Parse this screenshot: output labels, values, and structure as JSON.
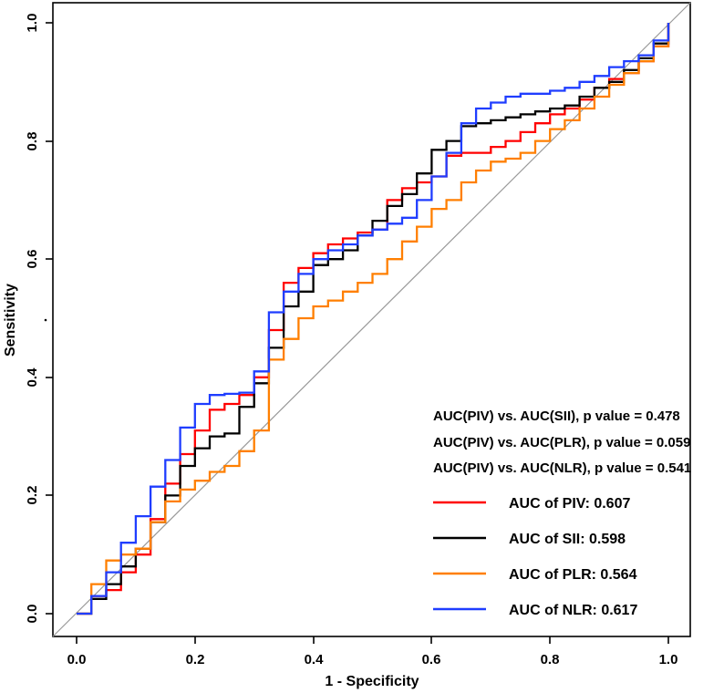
{
  "figure": {
    "xlabel": "1 - Specificity",
    "ylabel": "Sensitivity",
    "x_ticks": [
      "0.0",
      "0.2",
      "0.4",
      "0.6",
      "0.8",
      "1.0"
    ],
    "y_ticks": [
      "0.0",
      "0.2",
      "0.4",
      "0.6",
      "0.8",
      "1.0"
    ]
  },
  "annotations": {
    "p_values": [
      "AUC(PIV) vs. AUC(SII), p value = 0.478",
      "AUC(PIV) vs. AUC(PLR), p value = 0.059",
      "AUC(PIV) vs. AUC(NLR), p value = 0.541"
    ]
  },
  "legend": [
    {
      "label": "AUC of PIV: 0.607"
    },
    {
      "label": "AUC of SII: 0.598"
    },
    {
      "label": "AUC of PLR: 0.564"
    },
    {
      "label": "AUC of NLR: 0.617"
    }
  ],
  "colors": {
    "piv": "#ff0000",
    "sii": "#000000",
    "plr": "#ff7f00",
    "nlr": "#1f3dff",
    "reference": "#999999",
    "box": "#000000"
  },
  "chart_data": {
    "type": "line",
    "subtype": "roc-step-curves",
    "title": "",
    "xlabel": "1 - Specificity",
    "ylabel": "Sensitivity",
    "xlim": [
      0,
      1
    ],
    "ylim": [
      0,
      1
    ],
    "grid": false,
    "legend_position": "bottom-right",
    "reference_line": {
      "from": [
        0,
        0
      ],
      "to": [
        1,
        1
      ],
      "color": "#999999"
    },
    "p_value_comparisons": [
      {
        "comparison": "AUC(PIV) vs. AUC(SII)",
        "p_value": 0.478
      },
      {
        "comparison": "AUC(PIV) vs. AUC(PLR)",
        "p_value": 0.059
      },
      {
        "comparison": "AUC(PIV) vs. AUC(NLR)",
        "p_value": 0.541
      }
    ],
    "x": [
      0,
      0.025,
      0.05,
      0.075,
      0.1,
      0.125,
      0.15,
      0.175,
      0.2,
      0.225,
      0.25,
      0.275,
      0.3,
      0.325,
      0.35,
      0.375,
      0.4,
      0.425,
      0.45,
      0.475,
      0.5,
      0.525,
      0.55,
      0.575,
      0.6,
      0.625,
      0.65,
      0.675,
      0.7,
      0.725,
      0.75,
      0.775,
      0.8,
      0.825,
      0.85,
      0.875,
      0.9,
      0.925,
      0.95,
      0.975,
      1
    ],
    "series": [
      {
        "name": "PIV",
        "auc": 0.607,
        "color": "#ff0000",
        "values": [
          0,
          0.03,
          0.04,
          0.07,
          0.1,
          0.16,
          0.22,
          0.27,
          0.31,
          0.345,
          0.355,
          0.37,
          0.4,
          0.48,
          0.56,
          0.585,
          0.61,
          0.625,
          0.635,
          0.645,
          0.65,
          0.7,
          0.72,
          0.73,
          0.74,
          0.775,
          0.78,
          0.78,
          0.79,
          0.8,
          0.815,
          0.83,
          0.845,
          0.855,
          0.87,
          0.89,
          0.905,
          0.915,
          0.935,
          0.96,
          1
        ]
      },
      {
        "name": "SII",
        "auc": 0.598,
        "color": "#000000",
        "values": [
          0,
          0.025,
          0.05,
          0.08,
          0.11,
          0.155,
          0.2,
          0.25,
          0.28,
          0.3,
          0.305,
          0.35,
          0.39,
          0.45,
          0.52,
          0.545,
          0.59,
          0.6,
          0.615,
          0.64,
          0.665,
          0.69,
          0.71,
          0.745,
          0.785,
          0.8,
          0.825,
          0.83,
          0.835,
          0.84,
          0.845,
          0.85,
          0.855,
          0.86,
          0.875,
          0.89,
          0.9,
          0.92,
          0.94,
          0.965,
          1
        ]
      },
      {
        "name": "PLR",
        "auc": 0.564,
        "color": "#ff7f00",
        "values": [
          0,
          0.05,
          0.09,
          0.1,
          0.11,
          0.155,
          0.19,
          0.21,
          0.225,
          0.24,
          0.25,
          0.275,
          0.31,
          0.43,
          0.465,
          0.5,
          0.52,
          0.53,
          0.545,
          0.56,
          0.575,
          0.6,
          0.63,
          0.655,
          0.685,
          0.7,
          0.73,
          0.75,
          0.765,
          0.77,
          0.78,
          0.8,
          0.82,
          0.835,
          0.855,
          0.875,
          0.895,
          0.915,
          0.935,
          0.96,
          1
        ]
      },
      {
        "name": "NLR",
        "auc": 0.617,
        "color": "#1f3dff",
        "values": [
          0,
          0.03,
          0.07,
          0.12,
          0.165,
          0.215,
          0.26,
          0.315,
          0.355,
          0.37,
          0.372,
          0.374,
          0.41,
          0.51,
          0.545,
          0.575,
          0.6,
          0.615,
          0.625,
          0.64,
          0.65,
          0.66,
          0.67,
          0.7,
          0.74,
          0.78,
          0.83,
          0.855,
          0.865,
          0.875,
          0.88,
          0.88,
          0.885,
          0.89,
          0.9,
          0.91,
          0.925,
          0.935,
          0.945,
          0.97,
          1
        ]
      }
    ]
  }
}
